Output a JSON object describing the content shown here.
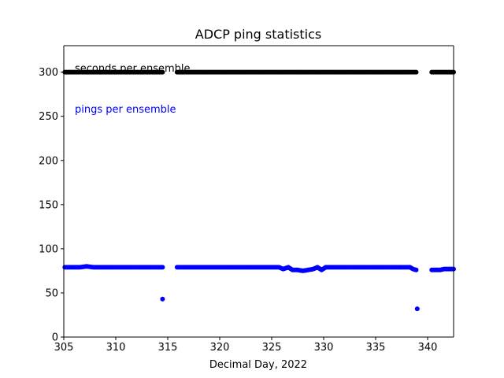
{
  "chart_data": {
    "type": "scatter",
    "title": "ADCP  ping statistics",
    "xlabel": "Decimal Day, 2022",
    "ylabel": "",
    "xlim": [
      305,
      342.5
    ],
    "ylim": [
      0,
      330
    ],
    "xticks": [
      305,
      310,
      315,
      320,
      325,
      330,
      335,
      340
    ],
    "yticks": [
      0,
      50,
      100,
      150,
      200,
      250,
      300
    ],
    "grid": false,
    "annotations": [
      {
        "text": "seconds per ensemble",
        "color": "#000000"
      },
      {
        "text": "pings per ensemble",
        "color": "#0000ff"
      }
    ],
    "series": [
      {
        "color": "#000000",
        "points": [
          [
            305.1,
            300
          ],
          [
            305.8,
            300
          ],
          [
            306.5,
            300
          ],
          [
            307.2,
            300
          ],
          [
            307.9,
            300
          ],
          [
            308.6,
            300
          ],
          [
            309.3,
            300
          ],
          [
            310.0,
            300
          ],
          [
            310.7,
            300
          ],
          [
            311.4,
            300
          ],
          [
            312.1,
            300
          ],
          [
            312.8,
            300
          ],
          [
            313.5,
            300
          ],
          [
            314.2,
            300
          ],
          [
            314.5,
            300
          ],
          [
            315.9,
            300
          ],
          [
            316.6,
            300
          ],
          [
            317.3,
            300
          ],
          [
            318.0,
            300
          ],
          [
            318.7,
            300
          ],
          [
            319.4,
            300
          ],
          [
            320.1,
            300
          ],
          [
            320.8,
            300
          ],
          [
            321.5,
            300
          ],
          [
            322.2,
            300
          ],
          [
            322.9,
            300
          ],
          [
            323.6,
            300
          ],
          [
            324.3,
            300
          ],
          [
            325.0,
            300
          ],
          [
            325.7,
            300
          ],
          [
            326.4,
            300
          ],
          [
            327.1,
            300
          ],
          [
            327.8,
            300
          ],
          [
            328.5,
            300
          ],
          [
            329.2,
            300
          ],
          [
            329.9,
            300
          ],
          [
            330.6,
            300
          ],
          [
            331.3,
            300
          ],
          [
            332.0,
            300
          ],
          [
            332.7,
            300
          ],
          [
            333.4,
            300
          ],
          [
            334.1,
            300
          ],
          [
            334.8,
            300
          ],
          [
            335.5,
            300
          ],
          [
            336.2,
            300
          ],
          [
            336.9,
            300
          ],
          [
            337.6,
            300
          ],
          [
            338.3,
            300
          ],
          [
            338.9,
            300
          ],
          [
            340.4,
            300
          ],
          [
            341.0,
            300
          ],
          [
            341.6,
            300
          ],
          [
            342.2,
            300
          ],
          [
            342.5,
            300
          ]
        ]
      },
      {
        "color": "#0000ff",
        "points": [
          [
            305.1,
            79
          ],
          [
            305.8,
            79
          ],
          [
            306.5,
            79
          ],
          [
            307.2,
            80
          ],
          [
            307.9,
            79
          ],
          [
            308.6,
            79
          ],
          [
            309.3,
            79
          ],
          [
            310.0,
            79
          ],
          [
            310.7,
            79
          ],
          [
            311.4,
            79
          ],
          [
            312.1,
            79
          ],
          [
            312.8,
            79
          ],
          [
            313.5,
            79
          ],
          [
            314.2,
            79
          ],
          [
            314.5,
            79
          ],
          [
            314.5,
            43
          ],
          [
            315.9,
            79
          ],
          [
            316.6,
            79
          ],
          [
            317.3,
            79
          ],
          [
            318.0,
            79
          ],
          [
            318.7,
            79
          ],
          [
            319.4,
            79
          ],
          [
            320.1,
            79
          ],
          [
            320.8,
            79
          ],
          [
            321.5,
            79
          ],
          [
            322.2,
            79
          ],
          [
            322.9,
            79
          ],
          [
            323.6,
            79
          ],
          [
            324.3,
            79
          ],
          [
            325.0,
            79
          ],
          [
            325.7,
            79
          ],
          [
            326.1,
            77
          ],
          [
            326.6,
            79
          ],
          [
            327.0,
            76
          ],
          [
            327.5,
            76
          ],
          [
            328.0,
            75
          ],
          [
            328.5,
            76
          ],
          [
            329.0,
            77
          ],
          [
            329.4,
            79
          ],
          [
            329.8,
            76
          ],
          [
            330.2,
            79
          ],
          [
            330.6,
            79
          ],
          [
            331.3,
            79
          ],
          [
            332.0,
            79
          ],
          [
            332.7,
            79
          ],
          [
            333.4,
            79
          ],
          [
            334.1,
            79
          ],
          [
            334.8,
            79
          ],
          [
            335.5,
            79
          ],
          [
            336.2,
            79
          ],
          [
            336.9,
            79
          ],
          [
            337.6,
            79
          ],
          [
            338.3,
            79
          ],
          [
            338.6,
            77
          ],
          [
            338.9,
            76
          ],
          [
            339.0,
            32
          ],
          [
            340.4,
            76
          ],
          [
            340.8,
            76
          ],
          [
            341.2,
            76
          ],
          [
            341.6,
            77
          ],
          [
            342.0,
            77
          ],
          [
            342.5,
            77
          ]
        ]
      }
    ]
  }
}
